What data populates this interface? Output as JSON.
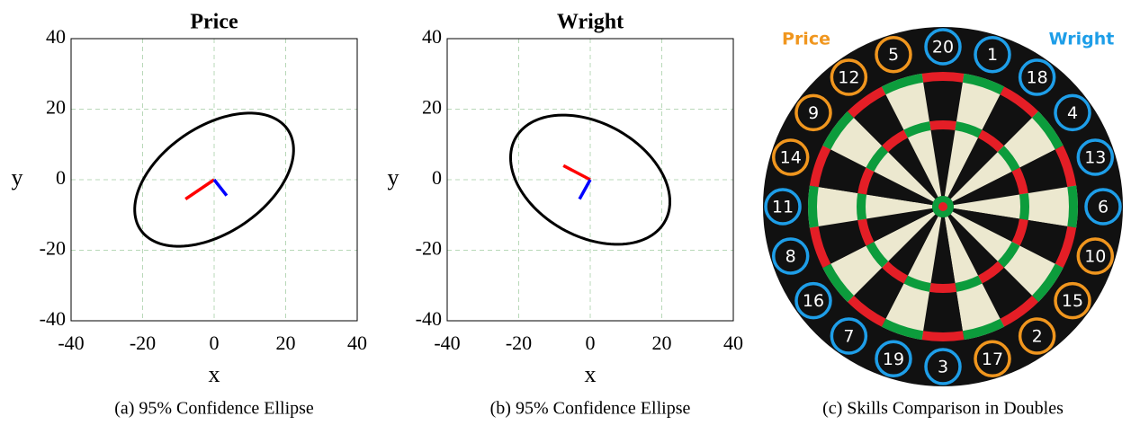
{
  "chart_data": [
    {
      "type": "ellipse",
      "title": "Price",
      "caption": "(a) 95% Confidence Ellipse",
      "xlabel": "x",
      "ylabel": "y",
      "xlim": [
        -40,
        40
      ],
      "ylim": [
        -40,
        40
      ],
      "xticks": [
        -40,
        -20,
        0,
        20,
        40
      ],
      "yticks": [
        -40,
        -20,
        0,
        20,
        40
      ],
      "grid": true,
      "ellipse": {
        "cx": 0,
        "cy": 0,
        "a": 25,
        "b": 15,
        "angle": 35,
        "color": "#000000"
      },
      "vectors": [
        {
          "color": "#ff0000",
          "x": [
            0,
            -8
          ],
          "y": [
            0,
            -5.5
          ]
        },
        {
          "color": "#0000ff",
          "x": [
            0,
            3.5
          ],
          "y": [
            0,
            -4.5
          ]
        }
      ]
    },
    {
      "type": "ellipse",
      "title": "Wright",
      "caption": "(b) 95% Confidence Ellipse",
      "xlabel": "x",
      "ylabel": "y",
      "xlim": [
        -40,
        40
      ],
      "ylim": [
        -40,
        40
      ],
      "xticks": [
        -40,
        -20,
        0,
        20,
        40
      ],
      "yticks": [
        -40,
        -20,
        0,
        20,
        40
      ],
      "grid": true,
      "ellipse": {
        "cx": 0,
        "cy": 0,
        "a": 24,
        "b": 16,
        "angle": -30,
        "color": "#000000"
      },
      "vectors": [
        {
          "color": "#ff0000",
          "x": [
            0,
            -7.5
          ],
          "y": [
            0,
            4
          ]
        },
        {
          "color": "#0000ff",
          "x": [
            0,
            -3
          ],
          "y": [
            0,
            -5.5
          ]
        }
      ]
    },
    {
      "type": "dartboard",
      "caption": "(c) Skills Comparison in Doubles",
      "categories": [
        "20",
        "1",
        "18",
        "4",
        "13",
        "6",
        "10",
        "15",
        "2",
        "17",
        "3",
        "19",
        "7",
        "16",
        "8",
        "11",
        "14",
        "9",
        "12",
        "5"
      ],
      "series": [
        {
          "name": "Price",
          "color": "#f0961e",
          "doubles": [
            "10",
            "15",
            "2",
            "17",
            "14",
            "9",
            "12",
            "5"
          ]
        },
        {
          "name": "Wright",
          "color": "#1e9ee8",
          "doubles": [
            "20",
            "1",
            "18",
            "4",
            "13",
            "6",
            "3",
            "19",
            "7",
            "16",
            "8",
            "11"
          ]
        }
      ]
    }
  ]
}
